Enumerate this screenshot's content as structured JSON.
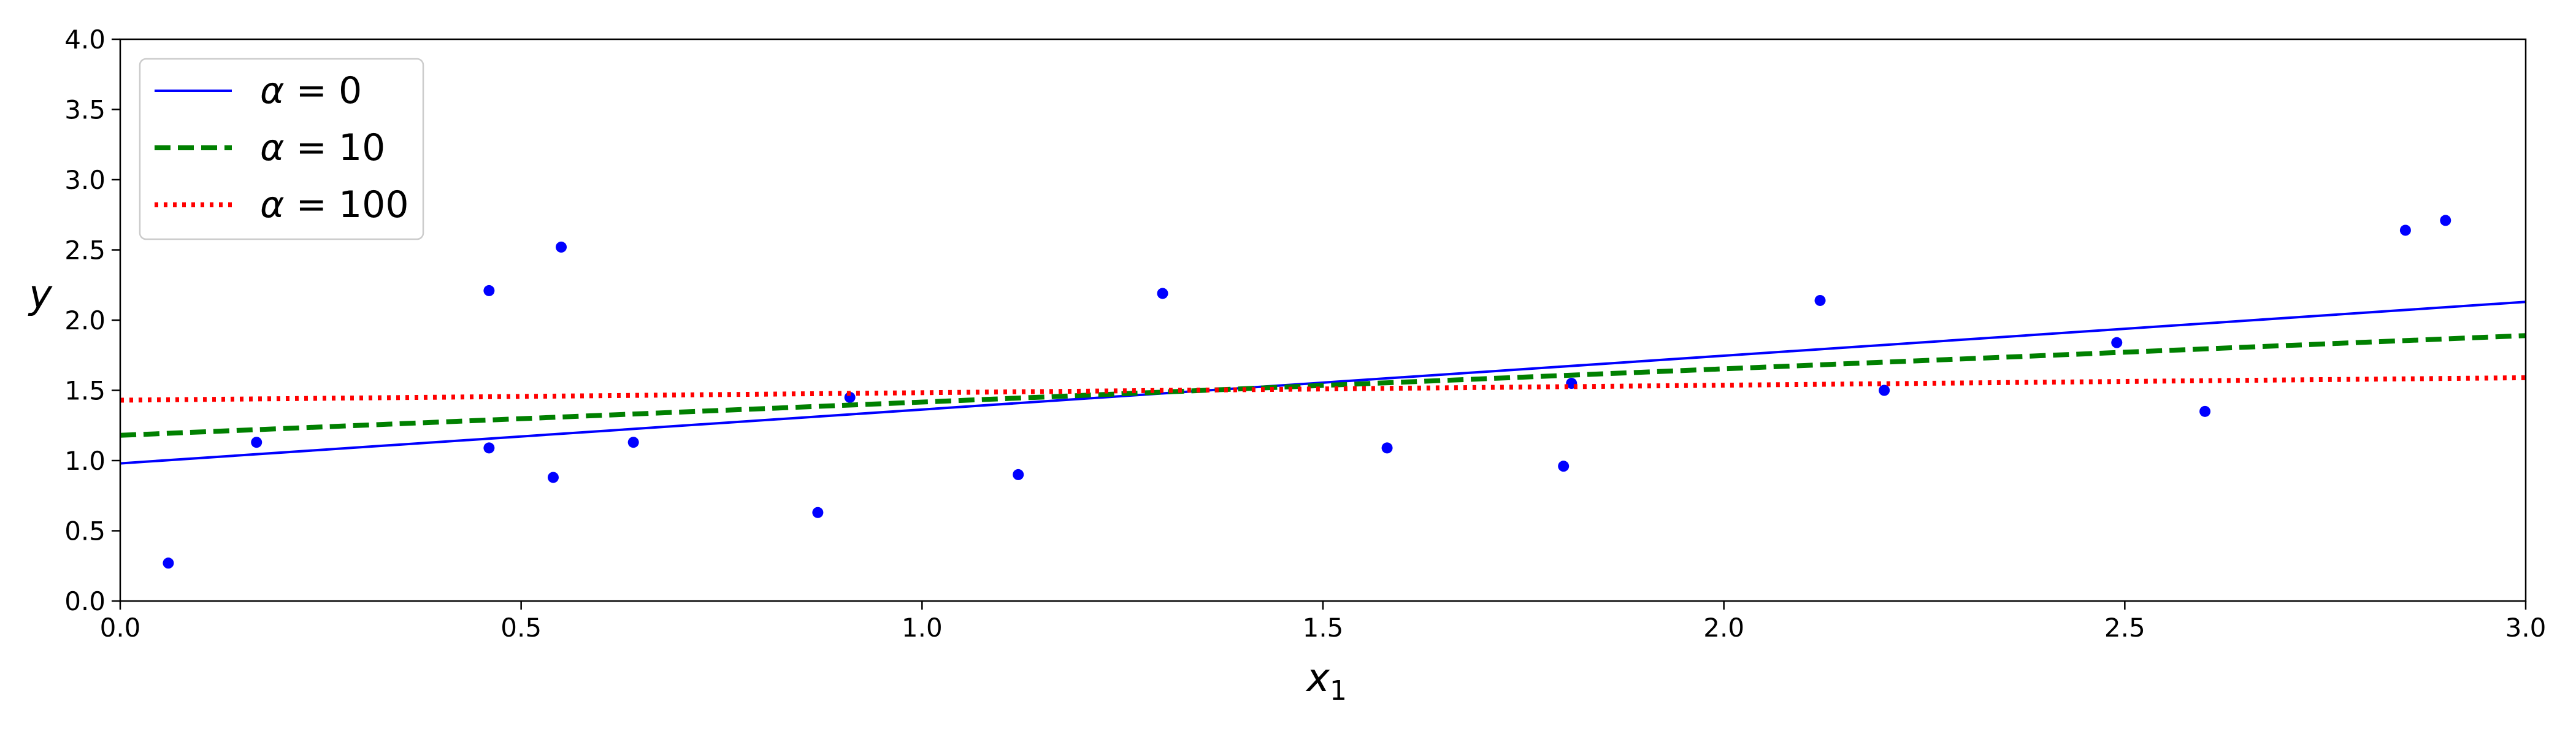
{
  "chart_data": {
    "type": "scatter",
    "xlabel": "x",
    "xlabel_subscript": "1",
    "ylabel": "y",
    "xlim": [
      0.0,
      3.0
    ],
    "ylim": [
      0.0,
      4.0
    ],
    "xticks": [
      0.0,
      0.5,
      1.0,
      1.5,
      2.0,
      2.5,
      3.0
    ],
    "xtick_labels": [
      "0.0",
      "0.5",
      "1.0",
      "1.5",
      "2.0",
      "2.5",
      "3.0"
    ],
    "yticks": [
      0.0,
      0.5,
      1.0,
      1.5,
      2.0,
      2.5,
      3.0,
      3.5,
      4.0
    ],
    "ytick_labels": [
      "0.0",
      "0.5",
      "1.0",
      "1.5",
      "2.0",
      "2.5",
      "3.0",
      "3.5",
      "4.0"
    ],
    "grid": false,
    "legend_position": "top-left",
    "points": {
      "color": "#0000ff",
      "x": [
        0.06,
        0.17,
        0.46,
        0.46,
        0.54,
        0.55,
        0.64,
        0.87,
        0.91,
        1.12,
        1.3,
        1.58,
        1.8,
        1.81,
        2.12,
        2.2,
        2.49,
        2.6,
        2.85,
        2.9
      ],
      "y": [
        0.27,
        1.13,
        2.21,
        1.09,
        0.88,
        2.52,
        1.13,
        0.63,
        1.45,
        0.9,
        2.19,
        1.09,
        0.96,
        1.55,
        2.14,
        1.5,
        1.84,
        1.35,
        2.64,
        2.71
      ]
    },
    "series": [
      {
        "label_greek": "α",
        "label_rest": " = 0",
        "color": "#0000ff",
        "style": "solid",
        "x": [
          0.0,
          3.0
        ],
        "y": [
          0.98,
          2.13
        ]
      },
      {
        "label_greek": "α",
        "label_rest": " = 10",
        "color": "#008000",
        "style": "dashed",
        "x": [
          0.0,
          3.0
        ],
        "y": [
          1.18,
          1.89
        ]
      },
      {
        "label_greek": "α",
        "label_rest": " = 100",
        "color": "#ff0000",
        "style": "dotted",
        "x": [
          0.0,
          3.0
        ],
        "y": [
          1.43,
          1.59
        ]
      }
    ]
  }
}
